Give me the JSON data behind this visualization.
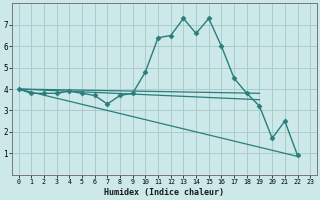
{
  "title": "",
  "xlabel": "Humidex (Indice chaleur)",
  "ylabel": "",
  "bg_color": "#cce8e8",
  "grid_color": "#aacccc",
  "line_color": "#2a7d7d",
  "xlim": [
    -0.5,
    23.5
  ],
  "ylim": [
    0,
    8
  ],
  "yticks": [
    1,
    2,
    3,
    4,
    5,
    6,
    7
  ],
  "xticks": [
    0,
    1,
    2,
    3,
    4,
    5,
    6,
    7,
    8,
    9,
    10,
    11,
    12,
    13,
    14,
    15,
    16,
    17,
    18,
    19,
    20,
    21,
    22,
    23
  ],
  "series": [
    {
      "x": [
        0,
        1,
        2,
        3,
        4,
        5,
        6,
        7,
        8,
        9,
        10,
        11,
        12,
        13,
        14,
        15,
        16,
        17,
        18,
        19,
        20,
        21,
        22
      ],
      "y": [
        4.0,
        3.8,
        3.8,
        3.8,
        3.9,
        3.8,
        3.7,
        3.3,
        3.7,
        3.8,
        4.8,
        6.4,
        6.5,
        7.3,
        6.6,
        7.3,
        6.0,
        4.5,
        3.8,
        3.2,
        1.7,
        2.5,
        0.9
      ],
      "marker": "D",
      "linewidth": 1.0,
      "markersize": 2.5,
      "linestyle": "solid"
    },
    {
      "x": [
        0,
        19
      ],
      "y": [
        4.0,
        3.8
      ],
      "marker": null,
      "linewidth": 0.9,
      "markersize": 0,
      "linestyle": "solid"
    },
    {
      "x": [
        0,
        19
      ],
      "y": [
        4.0,
        3.5
      ],
      "marker": null,
      "linewidth": 0.9,
      "markersize": 0,
      "linestyle": "solid"
    },
    {
      "x": [
        0,
        22
      ],
      "y": [
        4.0,
        0.85
      ],
      "marker": null,
      "linewidth": 0.9,
      "markersize": 0,
      "linestyle": "solid"
    }
  ]
}
